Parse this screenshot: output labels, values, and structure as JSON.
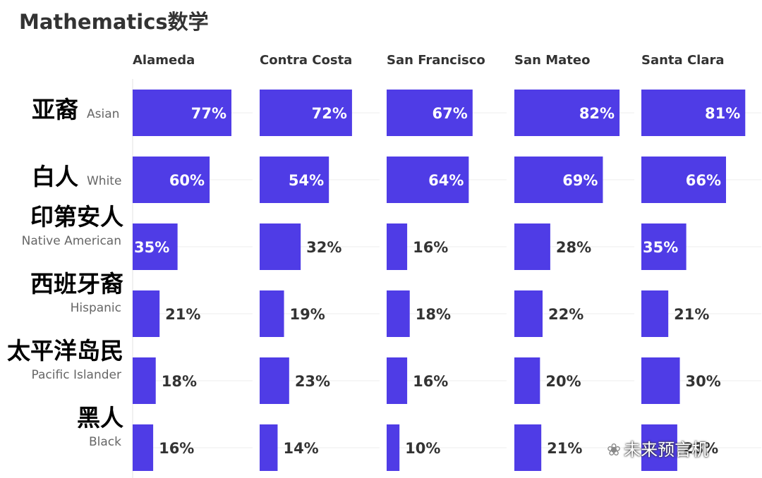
{
  "title": "Mathematics数学",
  "watermark": "未来预言机",
  "chart_data": {
    "type": "bar",
    "title": "Mathematics数学",
    "unit": "%",
    "xlim": [
      0,
      100
    ],
    "bar_color": "#4f3ce6",
    "counties": [
      "Alameda",
      "Contra Costa",
      "San Francisco",
      "San Mateo",
      "Santa Clara"
    ],
    "categories": [
      {
        "zh": "亚裔",
        "en": "Asian"
      },
      {
        "zh": "白人",
        "en": "White"
      },
      {
        "zh": "印第安人",
        "en": "Native American"
      },
      {
        "zh": "西班牙裔",
        "en": "Hispanic"
      },
      {
        "zh": "太平洋岛民",
        "en": "Pacific Islander"
      },
      {
        "zh": "黑人",
        "en": "Black"
      }
    ],
    "series": [
      {
        "county": "Alameda",
        "values": [
          77,
          60,
          35,
          21,
          18,
          16
        ]
      },
      {
        "county": "Contra Costa",
        "values": [
          72,
          54,
          32,
          19,
          23,
          14
        ]
      },
      {
        "county": "San Francisco",
        "values": [
          67,
          64,
          16,
          18,
          16,
          10
        ]
      },
      {
        "county": "San Mateo",
        "values": [
          82,
          69,
          28,
          22,
          20,
          21
        ]
      },
      {
        "county": "Santa Clara",
        "values": [
          81,
          66,
          35,
          21,
          30,
          28
        ]
      }
    ]
  }
}
